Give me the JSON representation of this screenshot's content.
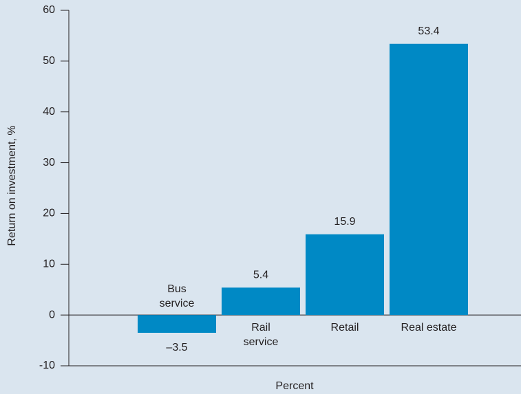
{
  "chart_data": {
    "type": "bar",
    "ylabel": "Return on investment, %",
    "xlabel": "Percent",
    "categories": [
      "Bus\nservice",
      "Rail\nservice",
      "Retail",
      "Real estate"
    ],
    "values": [
      -3.5,
      5.4,
      15.9,
      53.4
    ],
    "value_labels": [
      "–3.5",
      "5.4",
      "15.9",
      "53.4"
    ],
    "color": "#0089c5",
    "ylim": [
      -10,
      60
    ],
    "yticks": [
      -10,
      0,
      10,
      20,
      30,
      40,
      50,
      60
    ]
  }
}
